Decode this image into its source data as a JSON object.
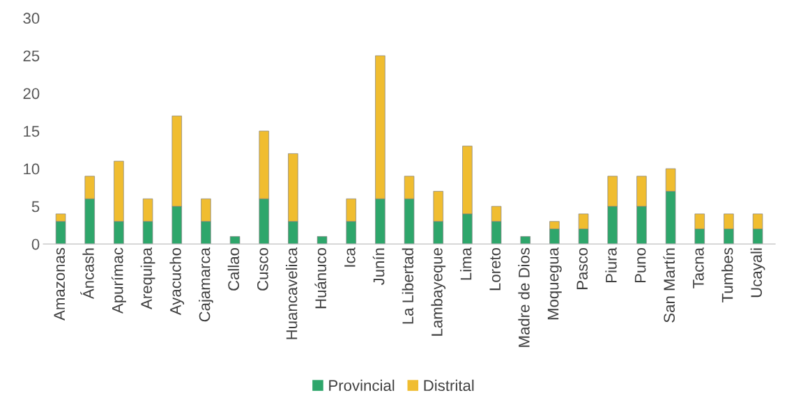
{
  "chart_data": {
    "type": "bar",
    "stacked": true,
    "categories": [
      "Amazonas",
      "Áncash",
      "Apurímac",
      "Arequipa",
      "Ayacucho",
      "Cajamarca",
      "Callao",
      "Cusco",
      "Huancavelica",
      "Huánuco",
      "Ica",
      "Junín",
      "La Libertad",
      "Lambayeque",
      "Lima",
      "Loreto",
      "Madre de Dios",
      "Moquegua",
      "Pasco",
      "Piura",
      "Puno",
      "San Martín",
      "Tacna",
      "Tumbes",
      "Ucayali"
    ],
    "series": [
      {
        "name": "Provincial",
        "color": "#2ea66b",
        "values": [
          3,
          6,
          3,
          3,
          5,
          3,
          1,
          6,
          3,
          1,
          3,
          6,
          6,
          3,
          4,
          3,
          1,
          2,
          2,
          5,
          5,
          7,
          2,
          2,
          2
        ]
      },
      {
        "name": "Distrital",
        "color": "#f0bd30",
        "values": [
          1,
          3,
          8,
          3,
          12,
          3,
          null,
          9,
          9,
          null,
          3,
          19,
          3,
          4,
          9,
          2,
          null,
          1,
          2,
          4,
          4,
          3,
          2,
          2,
          2
        ]
      }
    ],
    "ylim": [
      0,
      30
    ],
    "yticks": [
      0,
      5,
      10,
      15,
      20,
      25,
      30
    ],
    "grid": false,
    "legend": "bottom"
  }
}
